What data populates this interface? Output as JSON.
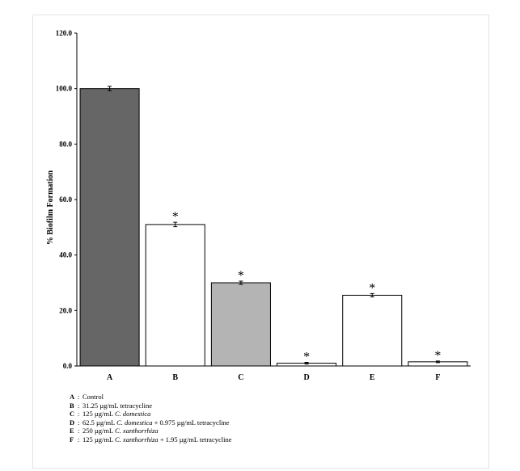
{
  "chart_data": {
    "type": "bar",
    "title": "",
    "xlabel": "",
    "ylabel": "% Biofilm Formation",
    "ylim": [
      0,
      120
    ],
    "yticks": [
      "0.0",
      "20.0",
      "40.0",
      "60.0",
      "80.0",
      "100.0",
      "120.0"
    ],
    "categories": [
      "A",
      "B",
      "C",
      "D",
      "E",
      "F"
    ],
    "values": [
      100.0,
      51.0,
      30.0,
      1.0,
      25.5,
      1.5
    ],
    "errors": [
      0.8,
      0.8,
      0.6,
      0.3,
      0.6,
      0.3
    ],
    "significance": [
      "",
      "*",
      "*",
      "*",
      "*",
      "*"
    ],
    "bar_colors": [
      "#666666",
      "#ffffff",
      "#b4b4b4",
      "#ffffff",
      "#ffffff",
      "#ffffff"
    ],
    "grid": false
  },
  "legend": [
    {
      "key": "A",
      "sep": ":",
      "parts": [
        {
          "t": "Control",
          "i": false
        }
      ]
    },
    {
      "key": "B",
      "sep": ":",
      "parts": [
        {
          "t": "31.25 µg/mL tetracycline",
          "i": false
        }
      ]
    },
    {
      "key": "C",
      "sep": ":",
      "parts": [
        {
          "t": "125 µg/mL ",
          "i": false
        },
        {
          "t": "C. domestica",
          "i": true
        }
      ]
    },
    {
      "key": "D",
      "sep": ":",
      "parts": [
        {
          "t": "62.5 µg/mL ",
          "i": false
        },
        {
          "t": "C. domestica",
          "i": true
        },
        {
          "t": " + 0.975 µg/mL tetracycline",
          "i": false
        }
      ]
    },
    {
      "key": "E",
      "sep": ":",
      "parts": [
        {
          "t": "250 µg/mL ",
          "i": false
        },
        {
          "t": "C. xanthorrhiza",
          "i": true
        }
      ]
    },
    {
      "key": "F",
      "sep": ":",
      "parts": [
        {
          "t": "125 µg/mL ",
          "i": false
        },
        {
          "t": "C. xanthorrhiza",
          "i": true
        },
        {
          "t": " + 1.95 µg/mL tetracycline",
          "i": false
        }
      ]
    }
  ]
}
